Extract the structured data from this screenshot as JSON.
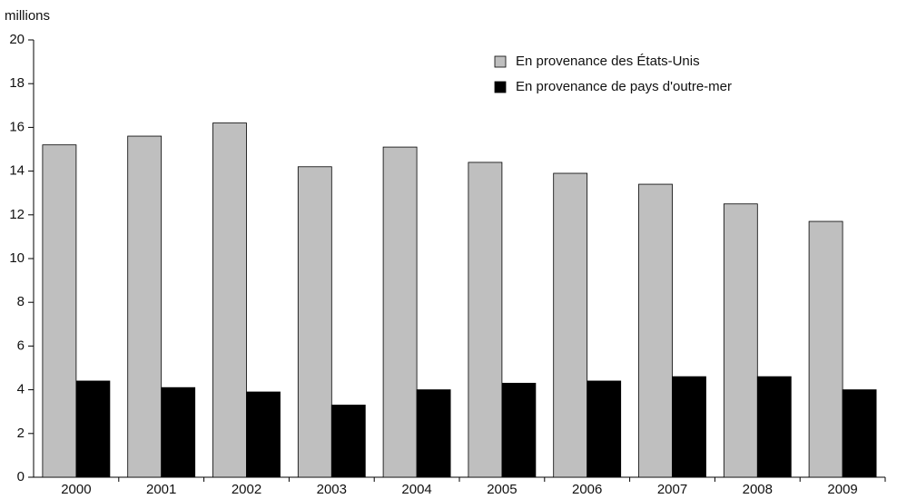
{
  "chart_data": {
    "type": "bar",
    "y_label": "millions",
    "categories": [
      "2000",
      "2001",
      "2002",
      "2003",
      "2004",
      "2005",
      "2006",
      "2007",
      "2008",
      "2009"
    ],
    "series": [
      {
        "name": "En provenance des États-Unis",
        "color": "#bfbfbf",
        "values": [
          15.2,
          15.6,
          16.2,
          14.2,
          15.1,
          14.4,
          13.9,
          13.4,
          12.5,
          11.7
        ]
      },
      {
        "name": "En provenance de pays d'outre-mer",
        "color": "#000000",
        "values": [
          4.4,
          4.1,
          3.9,
          3.3,
          4.0,
          4.3,
          4.4,
          4.6,
          4.6,
          4.0
        ]
      }
    ],
    "ylim": [
      0,
      20
    ],
    "yticks": [
      0,
      2,
      4,
      6,
      8,
      10,
      12,
      14,
      16,
      18,
      20
    ],
    "grid": false,
    "legend": "upper right"
  }
}
